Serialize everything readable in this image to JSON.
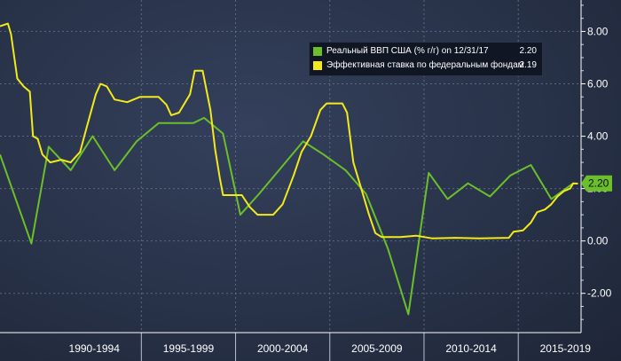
{
  "chart_data": {
    "type": "line",
    "title": "",
    "xlabel": "",
    "ylabel": "",
    "x_range": [
      1985.5,
      2022.5
    ],
    "ylim": [
      -3.5,
      9.2
    ],
    "y_ticks": [
      -2,
      0,
      2,
      4,
      6,
      8
    ],
    "y_tick_labels": [
      "-2.00",
      "0.00",
      "2.00",
      "4.00",
      "6.00",
      "8.00"
    ],
    "x_tick_labels": [
      "1990-1994",
      "1995-1999",
      "2000-2004",
      "2005-2009",
      "2010-2014",
      "2015-2019"
    ],
    "x_tick_positions": [
      1991.5,
      1997.5,
      2003.5,
      2009.5,
      2015.5,
      2021.5
    ],
    "x_separators": [
      1994.5,
      2000.5,
      2006.5,
      2012.5,
      2018.5
    ],
    "legend_position": "top-right",
    "current_value_label": "2.20",
    "series": [
      {
        "name": "Реальный ВВП США (% г/г) on 12/31/17",
        "last_value": "2.20",
        "color": "#6abf2a",
        "points": [
          [
            1985.5,
            3.3
          ],
          [
            1987.5,
            -0.1
          ],
          [
            1988.6,
            3.6
          ],
          [
            1990.0,
            2.7
          ],
          [
            1991.4,
            4.0
          ],
          [
            1992.8,
            2.7
          ],
          [
            1994.2,
            3.8
          ],
          [
            1995.6,
            4.5
          ],
          [
            1997.8,
            4.5
          ],
          [
            1998.5,
            4.7
          ],
          [
            1999.7,
            4.1
          ],
          [
            2000.8,
            1.0
          ],
          [
            2002.0,
            1.8
          ],
          [
            2003.4,
            2.8
          ],
          [
            2004.8,
            3.8
          ],
          [
            2006.1,
            3.3
          ],
          [
            2007.5,
            2.7
          ],
          [
            2008.8,
            1.8
          ],
          [
            2010.2,
            -0.3
          ],
          [
            2011.5,
            -2.8
          ],
          [
            2012.8,
            2.6
          ],
          [
            2014.0,
            1.6
          ],
          [
            2015.3,
            2.2
          ],
          [
            2016.7,
            1.7
          ],
          [
            2018.0,
            2.5
          ],
          [
            2019.3,
            2.9
          ],
          [
            2020.6,
            1.6
          ],
          [
            2022.0,
            2.2
          ]
        ]
      },
      {
        "name": "Эффективная ставка по федеральным фондам",
        "last_value": "2.19",
        "color": "#f2ea1a",
        "points": [
          [
            1985.5,
            8.2
          ],
          [
            1986.0,
            8.3
          ],
          [
            1986.2,
            7.9
          ],
          [
            1986.6,
            6.2
          ],
          [
            1987.0,
            5.9
          ],
          [
            1987.4,
            5.7
          ],
          [
            1987.6,
            4.0
          ],
          [
            1987.9,
            3.9
          ],
          [
            1988.2,
            3.3
          ],
          [
            1988.7,
            3.0
          ],
          [
            1989.4,
            3.1
          ],
          [
            1990.0,
            3.0
          ],
          [
            1990.6,
            3.4
          ],
          [
            1991.0,
            4.3
          ],
          [
            1991.6,
            5.6
          ],
          [
            1991.9,
            6.0
          ],
          [
            1992.3,
            5.9
          ],
          [
            1992.8,
            5.4
          ],
          [
            1993.6,
            5.3
          ],
          [
            1994.4,
            5.5
          ],
          [
            1995.6,
            5.5
          ],
          [
            1996.1,
            5.2
          ],
          [
            1996.4,
            4.8
          ],
          [
            1996.9,
            4.9
          ],
          [
            1997.6,
            5.6
          ],
          [
            1997.9,
            6.5
          ],
          [
            1998.4,
            6.5
          ],
          [
            1998.9,
            5.0
          ],
          [
            1999.2,
            3.5
          ],
          [
            1999.5,
            2.4
          ],
          [
            1999.7,
            1.75
          ],
          [
            2000.9,
            1.75
          ],
          [
            2001.4,
            1.3
          ],
          [
            2001.9,
            1.0
          ],
          [
            2002.9,
            1.0
          ],
          [
            2003.5,
            1.4
          ],
          [
            2004.2,
            2.5
          ],
          [
            2004.7,
            3.4
          ],
          [
            2005.3,
            4.0
          ],
          [
            2005.9,
            5.0
          ],
          [
            2006.3,
            5.25
          ],
          [
            2007.3,
            5.25
          ],
          [
            2007.6,
            4.9
          ],
          [
            2008.0,
            3.0
          ],
          [
            2008.5,
            2.0
          ],
          [
            2009.0,
            1.0
          ],
          [
            2009.4,
            0.3
          ],
          [
            2009.8,
            0.15
          ],
          [
            2011.0,
            0.15
          ],
          [
            2012.0,
            0.2
          ],
          [
            2013.0,
            0.1
          ],
          [
            2014.5,
            0.12
          ],
          [
            2016.0,
            0.1
          ],
          [
            2017.9,
            0.12
          ],
          [
            2018.2,
            0.35
          ],
          [
            2018.8,
            0.4
          ],
          [
            2019.3,
            0.7
          ],
          [
            2019.7,
            1.1
          ],
          [
            2020.2,
            1.2
          ],
          [
            2020.6,
            1.4
          ],
          [
            2021.0,
            1.7
          ],
          [
            2021.4,
            1.9
          ],
          [
            2021.8,
            2.0
          ],
          [
            2022.0,
            2.2
          ],
          [
            2022.3,
            2.19
          ]
        ]
      }
    ]
  }
}
